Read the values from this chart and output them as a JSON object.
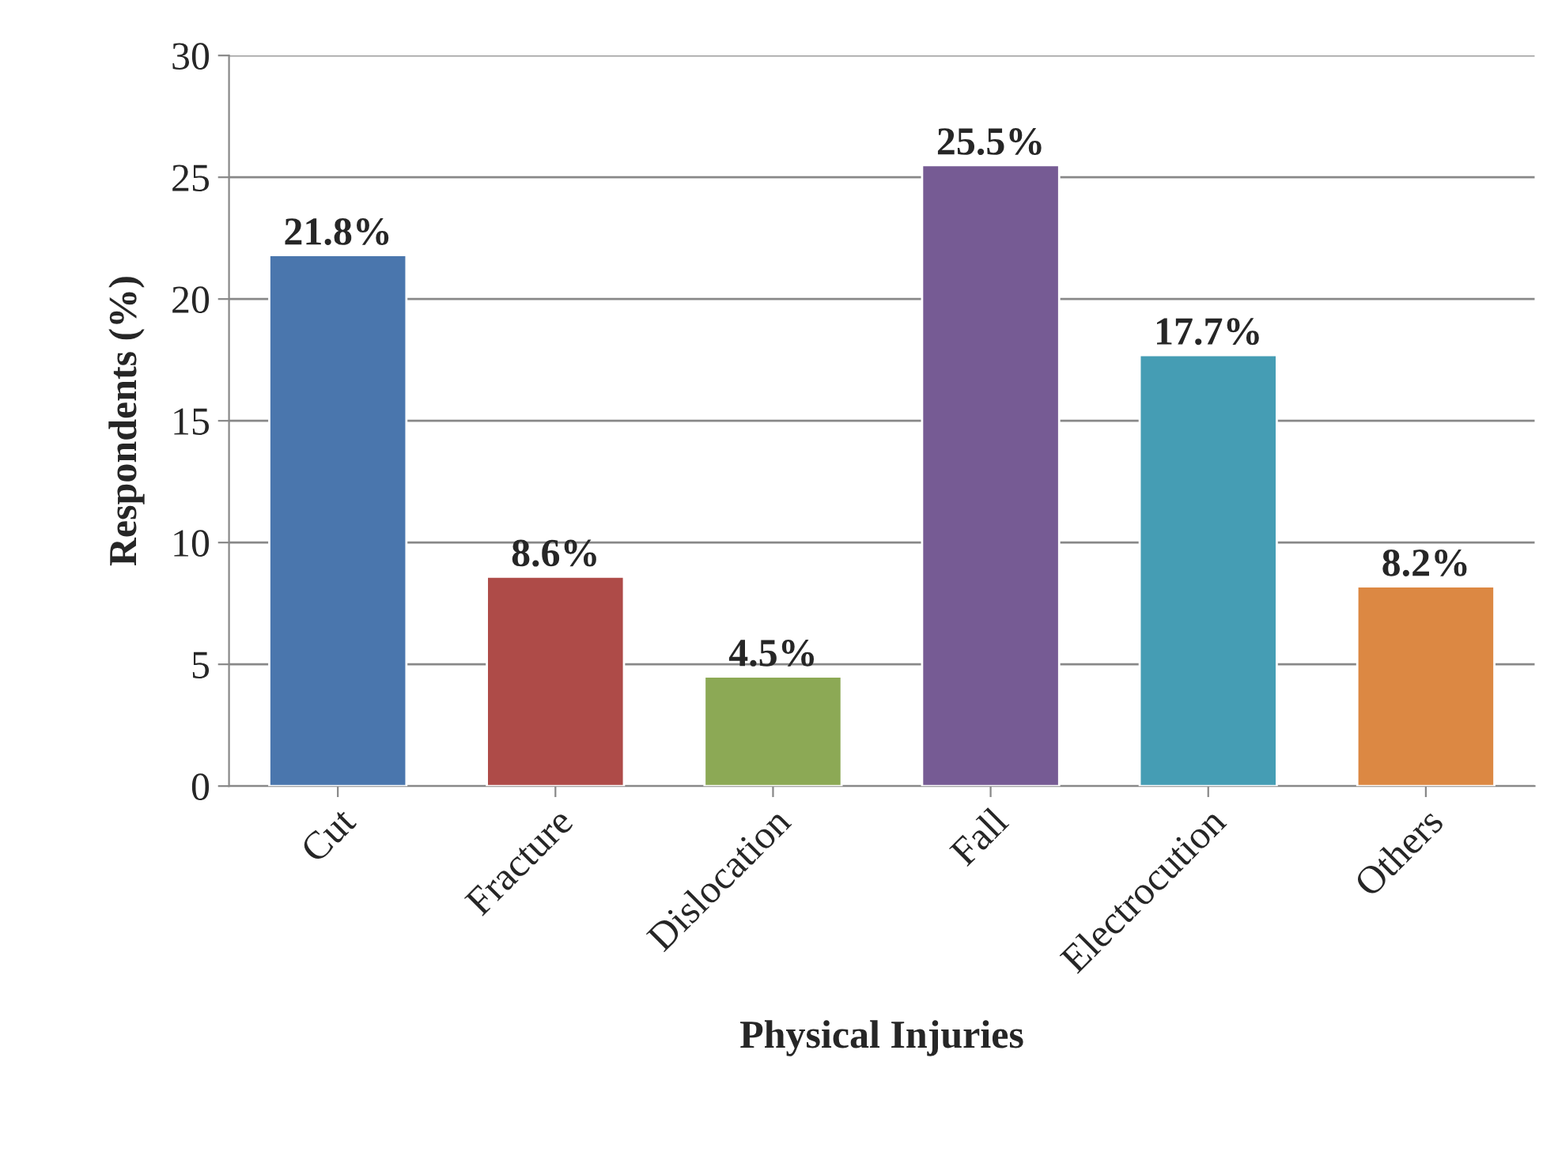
{
  "chart_data": {
    "type": "bar",
    "xlabel": "Physical Injuries",
    "ylabel": "Respondents (%)",
    "categories": [
      "Cut",
      "Fracture",
      "Dislocation",
      "Fall",
      "Electrocution",
      "Others"
    ],
    "values": [
      21.8,
      8.6,
      4.5,
      25.5,
      17.7,
      8.2
    ],
    "colors": [
      "#4a76ad",
      "#ae4b48",
      "#8ca955",
      "#765b94",
      "#459db4",
      "#dc8843"
    ],
    "value_labels": [
      "21.8%",
      "8.6%",
      "4.5%",
      "25.5%",
      "17.7%",
      "8.2%"
    ],
    "ylim": [
      0,
      30
    ],
    "yticks": [
      0,
      5,
      10,
      15,
      20,
      25,
      30
    ],
    "grid": "y",
    "legend": false
  }
}
